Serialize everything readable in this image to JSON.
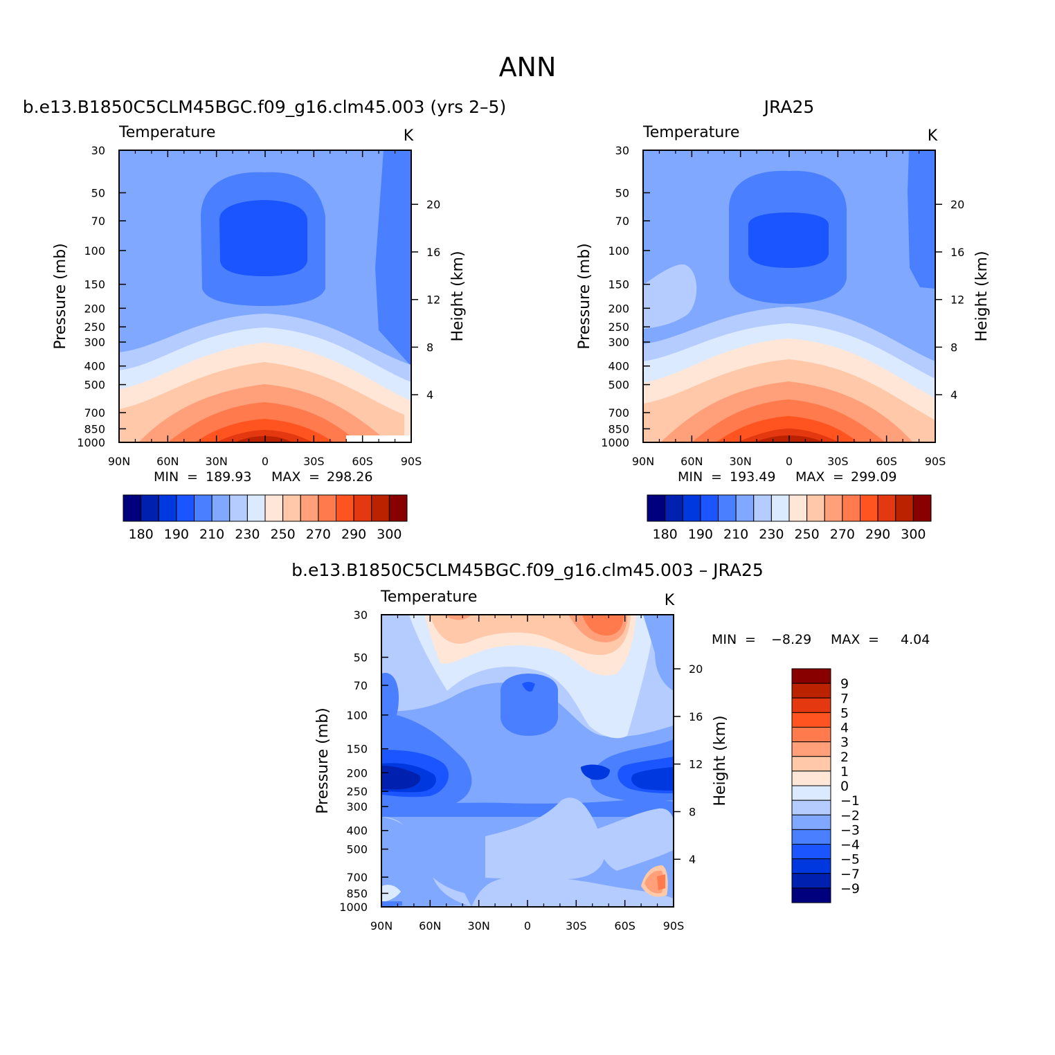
{
  "figure": {
    "title": "ANN"
  },
  "chart_data": [
    {
      "type": "contour",
      "title": "b.e13.B1850C5CLM45BGC.f09_g16.clm45.003 (yrs 2–5)",
      "variable": "Temperature",
      "units": "K",
      "ylabel": "Pressure (mb)",
      "ylabel_right": "Height (km)",
      "x_ticks": [
        "90N",
        "60N",
        "30N",
        "0",
        "30S",
        "60S",
        "90S"
      ],
      "y_ticks": [
        "30",
        "50",
        "70",
        "100",
        "150",
        "200",
        "250",
        "300",
        "400",
        "500",
        "700",
        "850",
        "1000"
      ],
      "y2_ticks": [
        "20",
        "16",
        "12",
        "8",
        "4"
      ],
      "min_label": "MIN",
      "min": "189.93",
      "max_label": "MAX",
      "max": "298.26",
      "colorbar_labels": [
        "180",
        "190",
        "210",
        "230",
        "250",
        "270",
        "290",
        "300"
      ]
    },
    {
      "type": "contour",
      "title": "JRA25",
      "variable": "Temperature",
      "units": "K",
      "ylabel": "Pressure (mb)",
      "ylabel_right": "Height (km)",
      "x_ticks": [
        "90N",
        "60N",
        "30N",
        "0",
        "30S",
        "60S",
        "90S"
      ],
      "y_ticks": [
        "30",
        "50",
        "70",
        "100",
        "150",
        "200",
        "250",
        "300",
        "400",
        "500",
        "700",
        "850",
        "1000"
      ],
      "y2_ticks": [
        "20",
        "16",
        "12",
        "8",
        "4"
      ],
      "min_label": "MIN",
      "min": "193.49",
      "max_label": "MAX",
      "max": "299.09",
      "colorbar_labels": [
        "180",
        "190",
        "210",
        "230",
        "250",
        "270",
        "290",
        "300"
      ]
    },
    {
      "type": "contour",
      "title": "b.e13.B1850C5CLM45BGC.f09_g16.clm45.003 – JRA25",
      "variable": "Temperature",
      "units": "K",
      "ylabel": "Pressure (mb)",
      "ylabel_right": "Height (km)",
      "x_ticks": [
        "90N",
        "60N",
        "30N",
        "0",
        "30S",
        "60S",
        "90S"
      ],
      "y_ticks": [
        "30",
        "50",
        "70",
        "100",
        "150",
        "200",
        "250",
        "300",
        "400",
        "500",
        "700",
        "850",
        "1000"
      ],
      "y2_ticks": [
        "20",
        "16",
        "12",
        "8",
        "4"
      ],
      "min_label": "MIN",
      "min": "−8.29",
      "max_label": "MAX",
      "max": "4.04",
      "colorbar_labels": [
        "9",
        "7",
        "5",
        "4",
        "3",
        "2",
        "1",
        "0",
        "−1",
        "−2",
        "−3",
        "−4",
        "−5",
        "−7",
        "−9"
      ]
    }
  ],
  "palette": [
    "#00007f",
    "#0020b0",
    "#0038e0",
    "#1a55ff",
    "#4a80ff",
    "#80a8ff",
    "#b4ccff",
    "#dceaff",
    "#ffe6d6",
    "#ffc8a8",
    "#ffa07a",
    "#ff7a4c",
    "#ff5420",
    "#e33810",
    "#bb2200",
    "#880000"
  ]
}
